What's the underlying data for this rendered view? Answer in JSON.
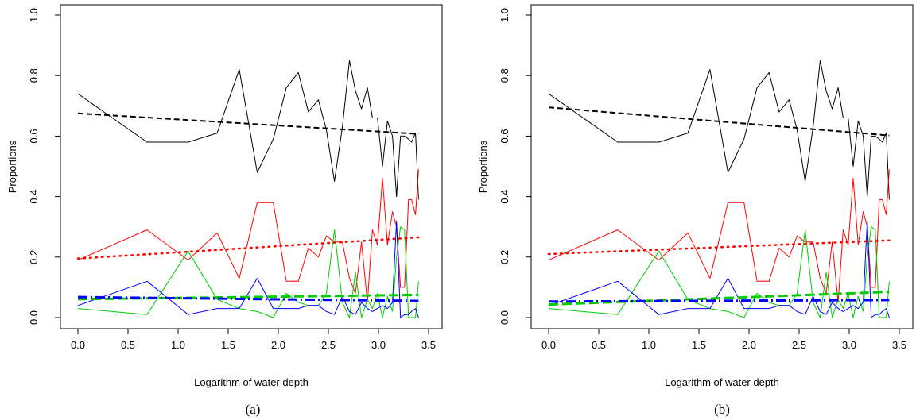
{
  "chart_data": [
    {
      "type": "line",
      "caption": "(a)",
      "xlabel": "Logarithm of water depth",
      "ylabel": "Proportions",
      "xlim": [
        0,
        3.5
      ],
      "ylim": [
        0,
        1.0
      ],
      "x_ticks": [
        "0.0",
        "0.5",
        "1.0",
        "1.5",
        "2.0",
        "2.5",
        "3.0",
        "3.5"
      ],
      "y_ticks": [
        "0.0",
        "0.2",
        "0.4",
        "0.6",
        "0.8",
        "1.0"
      ],
      "grid": false,
      "series": [
        {
          "color": "#000000",
          "style": "solid",
          "x": [
            0.0,
            0.69,
            1.1,
            1.39,
            1.61,
            1.79,
            1.95,
            2.08,
            2.2,
            2.3,
            2.4,
            2.48,
            2.56,
            2.64,
            2.71,
            2.77,
            2.83,
            2.89,
            2.94,
            2.99,
            3.04,
            3.09,
            3.14,
            3.18,
            3.22,
            3.26,
            3.3,
            3.33,
            3.37,
            3.4
          ],
          "y": [
            0.74,
            0.58,
            0.58,
            0.61,
            0.82,
            0.48,
            0.59,
            0.76,
            0.81,
            0.68,
            0.72,
            0.62,
            0.45,
            0.63,
            0.85,
            0.75,
            0.69,
            0.76,
            0.66,
            0.66,
            0.5,
            0.65,
            0.6,
            0.4,
            0.6,
            0.6,
            0.59,
            0.58,
            0.61,
            0.39
          ]
        },
        {
          "color": "#ff0000",
          "style": "solid",
          "x": [
            0.0,
            0.69,
            1.1,
            1.39,
            1.61,
            1.79,
            1.95,
            2.08,
            2.2,
            2.3,
            2.4,
            2.48,
            2.56,
            2.64,
            2.71,
            2.77,
            2.83,
            2.89,
            2.94,
            2.99,
            3.04,
            3.09,
            3.14,
            3.18,
            3.22,
            3.26,
            3.3,
            3.33,
            3.37,
            3.4
          ],
          "y": [
            0.19,
            0.29,
            0.19,
            0.28,
            0.13,
            0.38,
            0.38,
            0.12,
            0.12,
            0.23,
            0.2,
            0.27,
            0.25,
            0.25,
            0.13,
            0.08,
            0.25,
            0.05,
            0.29,
            0.24,
            0.46,
            0.24,
            0.35,
            0.3,
            0.1,
            0.1,
            0.39,
            0.39,
            0.34,
            0.49
          ]
        },
        {
          "color": "#00cc00",
          "style": "solid",
          "x": [
            0.0,
            0.69,
            1.1,
            1.39,
            1.61,
            1.79,
            1.95,
            2.08,
            2.2,
            2.3,
            2.4,
            2.48,
            2.56,
            2.64,
            2.71,
            2.77,
            2.83,
            2.89,
            2.94,
            2.99,
            3.04,
            3.09,
            3.14,
            3.18,
            3.22,
            3.26,
            3.3,
            3.33,
            3.37,
            3.4
          ],
          "y": [
            0.03,
            0.01,
            0.22,
            0.06,
            0.03,
            0.02,
            0.0,
            0.08,
            0.05,
            0.04,
            0.04,
            0.08,
            0.29,
            0.05,
            0.0,
            0.15,
            0.0,
            0.06,
            0.03,
            0.08,
            0.0,
            0.07,
            0.02,
            0.2,
            0.3,
            0.29,
            0.0,
            0.0,
            0.0,
            0.12
          ]
        },
        {
          "color": "#0000ff",
          "style": "solid",
          "x": [
            0.0,
            0.69,
            1.1,
            1.39,
            1.61,
            1.79,
            1.95,
            2.08,
            2.2,
            2.3,
            2.4,
            2.48,
            2.56,
            2.64,
            2.71,
            2.77,
            2.83,
            2.89,
            2.94,
            2.99,
            3.04,
            3.09,
            3.14,
            3.18,
            3.22,
            3.26,
            3.3,
            3.33,
            3.37,
            3.4
          ],
          "y": [
            0.04,
            0.12,
            0.01,
            0.03,
            0.03,
            0.13,
            0.03,
            0.03,
            0.03,
            0.04,
            0.04,
            0.02,
            0.01,
            0.07,
            0.02,
            0.01,
            0.05,
            0.03,
            0.02,
            0.03,
            0.04,
            0.03,
            0.05,
            0.32,
            0.0,
            0.01,
            0.01,
            0.02,
            0.03,
            0.0
          ]
        },
        {
          "color": "#000000",
          "style": "dashed",
          "x": [
            0.0,
            3.4
          ],
          "y": [
            0.675,
            0.607
          ]
        },
        {
          "color": "#ff0000",
          "style": "dotted",
          "x": [
            0.0,
            3.4
          ],
          "y": [
            0.195,
            0.265
          ]
        },
        {
          "color": "#00cc00",
          "style": "longdash",
          "x": [
            0.0,
            3.4
          ],
          "y": [
            0.061,
            0.075
          ]
        },
        {
          "color": "#0000ff",
          "style": "dotdash",
          "x": [
            0.0,
            3.4
          ],
          "y": [
            0.068,
            0.055
          ]
        }
      ]
    },
    {
      "type": "line",
      "caption": "(b)",
      "xlabel": "Logarithm of water depth",
      "ylabel": "Proportions",
      "xlim": [
        0,
        3.5
      ],
      "ylim": [
        0,
        1.0
      ],
      "x_ticks": [
        "0.0",
        "0.5",
        "1.0",
        "1.5",
        "2.0",
        "2.5",
        "3.0",
        "3.5"
      ],
      "y_ticks": [
        "0.0",
        "0.2",
        "0.4",
        "0.6",
        "0.8",
        "1.0"
      ],
      "grid": false,
      "series": [
        {
          "color": "#000000",
          "style": "solid",
          "x": [
            0.0,
            0.69,
            1.1,
            1.39,
            1.61,
            1.79,
            1.95,
            2.08,
            2.2,
            2.3,
            2.4,
            2.48,
            2.56,
            2.64,
            2.71,
            2.77,
            2.83,
            2.89,
            2.94,
            2.99,
            3.04,
            3.09,
            3.14,
            3.18,
            3.22,
            3.26,
            3.3,
            3.33,
            3.37,
            3.4
          ],
          "y": [
            0.74,
            0.58,
            0.58,
            0.61,
            0.82,
            0.48,
            0.59,
            0.76,
            0.81,
            0.68,
            0.72,
            0.62,
            0.45,
            0.63,
            0.85,
            0.75,
            0.69,
            0.76,
            0.66,
            0.66,
            0.5,
            0.65,
            0.6,
            0.4,
            0.6,
            0.6,
            0.59,
            0.58,
            0.61,
            0.39
          ]
        },
        {
          "color": "#ff0000",
          "style": "solid",
          "x": [
            0.0,
            0.69,
            1.1,
            1.39,
            1.61,
            1.79,
            1.95,
            2.08,
            2.2,
            2.3,
            2.4,
            2.48,
            2.56,
            2.64,
            2.71,
            2.77,
            2.83,
            2.89,
            2.94,
            2.99,
            3.04,
            3.09,
            3.14,
            3.18,
            3.22,
            3.26,
            3.3,
            3.33,
            3.37,
            3.4
          ],
          "y": [
            0.19,
            0.29,
            0.19,
            0.28,
            0.13,
            0.38,
            0.38,
            0.12,
            0.12,
            0.23,
            0.2,
            0.27,
            0.25,
            0.25,
            0.13,
            0.08,
            0.25,
            0.05,
            0.29,
            0.24,
            0.46,
            0.24,
            0.35,
            0.3,
            0.1,
            0.1,
            0.39,
            0.39,
            0.34,
            0.49
          ]
        },
        {
          "color": "#00cc00",
          "style": "solid",
          "x": [
            0.0,
            0.69,
            1.1,
            1.39,
            1.61,
            1.79,
            1.95,
            2.08,
            2.2,
            2.3,
            2.4,
            2.48,
            2.56,
            2.64,
            2.71,
            2.77,
            2.83,
            2.89,
            2.94,
            2.99,
            3.04,
            3.09,
            3.14,
            3.18,
            3.22,
            3.26,
            3.3,
            3.33,
            3.37,
            3.4
          ],
          "y": [
            0.03,
            0.01,
            0.22,
            0.06,
            0.03,
            0.02,
            0.0,
            0.08,
            0.05,
            0.04,
            0.04,
            0.08,
            0.29,
            0.05,
            0.0,
            0.15,
            0.0,
            0.06,
            0.03,
            0.08,
            0.0,
            0.07,
            0.02,
            0.2,
            0.3,
            0.29,
            0.0,
            0.0,
            0.0,
            0.12
          ]
        },
        {
          "color": "#0000ff",
          "style": "solid",
          "x": [
            0.0,
            0.69,
            1.1,
            1.39,
            1.61,
            1.79,
            1.95,
            2.08,
            2.2,
            2.3,
            2.4,
            2.48,
            2.56,
            2.64,
            2.71,
            2.77,
            2.83,
            2.89,
            2.94,
            2.99,
            3.04,
            3.09,
            3.14,
            3.18,
            3.22,
            3.26,
            3.3,
            3.33,
            3.37,
            3.4
          ],
          "y": [
            0.04,
            0.12,
            0.01,
            0.03,
            0.03,
            0.13,
            0.03,
            0.03,
            0.03,
            0.04,
            0.04,
            0.02,
            0.01,
            0.07,
            0.02,
            0.01,
            0.05,
            0.03,
            0.02,
            0.03,
            0.04,
            0.03,
            0.05,
            0.32,
            0.0,
            0.01,
            0.01,
            0.02,
            0.03,
            0.0
          ]
        },
        {
          "color": "#000000",
          "style": "dashed",
          "x": [
            0.0,
            3.4
          ],
          "y": [
            0.695,
            0.602
          ]
        },
        {
          "color": "#ff0000",
          "style": "dotted",
          "x": [
            0.0,
            3.4
          ],
          "y": [
            0.21,
            0.255
          ]
        },
        {
          "color": "#00cc00",
          "style": "longdash",
          "x": [
            0.0,
            3.4
          ],
          "y": [
            0.043,
            0.085
          ]
        },
        {
          "color": "#0000ff",
          "style": "dotdash",
          "x": [
            0.0,
            3.4
          ],
          "y": [
            0.053,
            0.058
          ]
        }
      ]
    }
  ]
}
